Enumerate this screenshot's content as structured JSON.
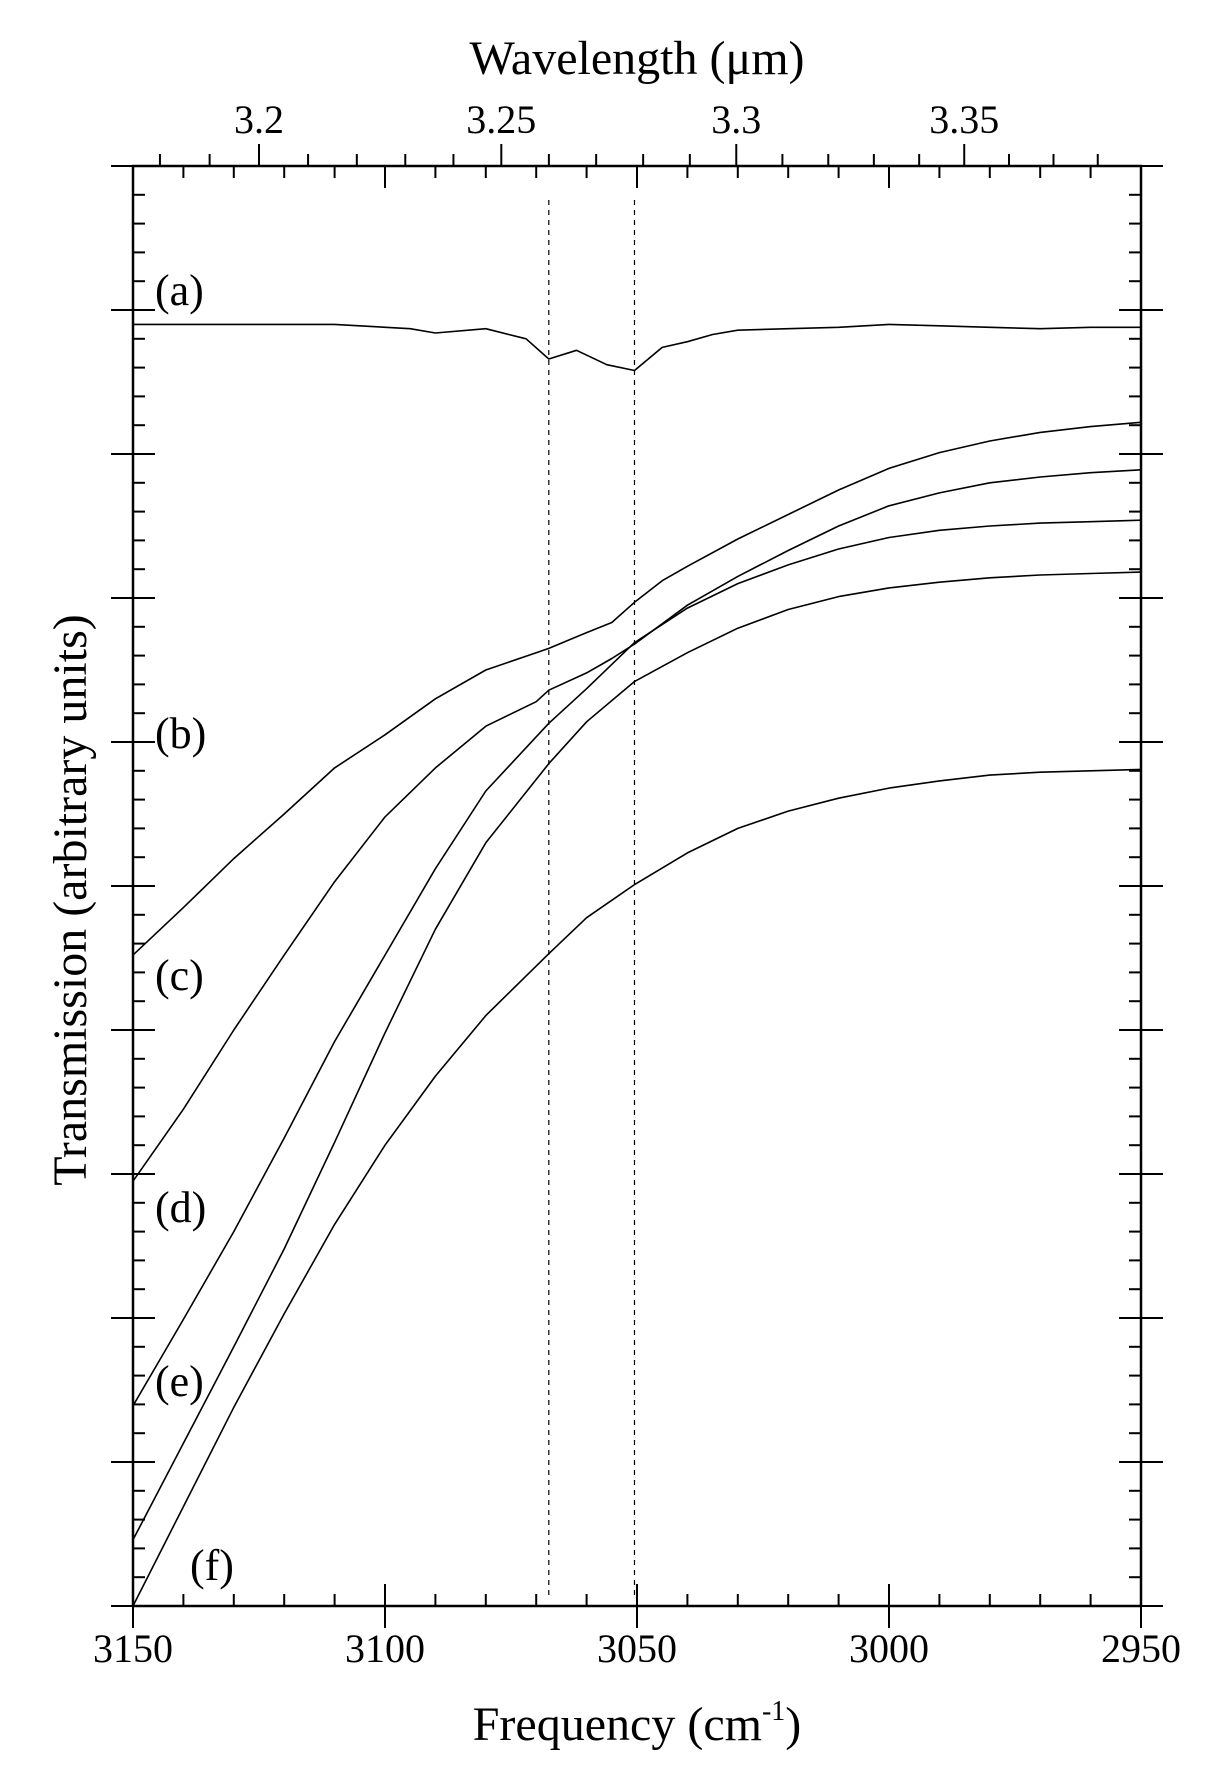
{
  "chart_data": {
    "type": "line",
    "top_axis_title": "Wavelength (μm)",
    "x_title_main": "Frequency (cm",
    "x_title_sup": "-1",
    "x_title_end": ")",
    "ylabel": "Transmission (arbitrary units)",
    "x_axis_reversed": true,
    "xlim": [
      3150,
      2950
    ],
    "ylim": [
      0,
      1
    ],
    "x_ticks": [
      "3150",
      "3100",
      "3050",
      "3000",
      "2950"
    ],
    "top_ticks": [
      {
        "label": "3.2",
        "wavelength_um": 3.2
      },
      {
        "label": "3.25",
        "wavelength_um": 3.25
      },
      {
        "label": "3.3",
        "wavelength_um": 3.3
      },
      {
        "label": "3.35",
        "wavelength_um": 3.35
      }
    ],
    "dashed_lines_cm1": [
      3067.5,
      3050.5
    ],
    "grid": false,
    "series": [
      {
        "name": "(a)",
        "x": [
          3150,
          3110,
          3095,
          3090,
          3080,
          3072,
          3067.5,
          3062,
          3056,
          3050.5,
          3045,
          3040,
          3035,
          3030,
          3020,
          3010,
          3000,
          2990,
          2980,
          2970,
          2960,
          2950
        ],
        "y": [
          0.89,
          0.89,
          0.887,
          0.884,
          0.887,
          0.88,
          0.866,
          0.872,
          0.862,
          0.858,
          0.874,
          0.878,
          0.883,
          0.886,
          0.887,
          0.888,
          0.89,
          0.889,
          0.888,
          0.887,
          0.888,
          0.888
        ]
      },
      {
        "name": "(b)",
        "x": [
          3150,
          3140,
          3130,
          3120,
          3110,
          3100,
          3090,
          3080,
          3070,
          3067.5,
          3060,
          3055,
          3050.5,
          3045,
          3040,
          3030,
          3020,
          3010,
          3000,
          2990,
          2980,
          2970,
          2960,
          2950
        ],
        "y": [
          0.452,
          0.485,
          0.519,
          0.55,
          0.582,
          0.605,
          0.63,
          0.65,
          0.662,
          0.665,
          0.676,
          0.683,
          0.697,
          0.712,
          0.722,
          0.741,
          0.758,
          0.775,
          0.79,
          0.801,
          0.809,
          0.815,
          0.819,
          0.822
        ]
      },
      {
        "name": "(c)",
        "x": [
          3150,
          3140,
          3130,
          3120,
          3110,
          3100,
          3090,
          3080,
          3070,
          3067.5,
          3060,
          3055,
          3050.5,
          3040,
          3030,
          3020,
          3010,
          3000,
          2990,
          2980,
          2970,
          2960,
          2950
        ],
        "y": [
          0.295,
          0.345,
          0.4,
          0.452,
          0.503,
          0.548,
          0.582,
          0.611,
          0.628,
          0.636,
          0.648,
          0.658,
          0.668,
          0.695,
          0.715,
          0.733,
          0.75,
          0.764,
          0.773,
          0.78,
          0.784,
          0.787,
          0.789
        ]
      },
      {
        "name": "(d)",
        "x": [
          3150,
          3140,
          3130,
          3120,
          3110,
          3100,
          3090,
          3080,
          3067.5,
          3060,
          3050.5,
          3040,
          3030,
          3020,
          3010,
          3000,
          2990,
          2980,
          2970,
          2960,
          2950
        ],
        "y": [
          0.139,
          0.199,
          0.26,
          0.325,
          0.392,
          0.452,
          0.512,
          0.566,
          0.613,
          0.637,
          0.669,
          0.693,
          0.71,
          0.723,
          0.734,
          0.742,
          0.747,
          0.75,
          0.752,
          0.753,
          0.754
        ]
      },
      {
        "name": "(e)",
        "x": [
          3150,
          3140,
          3130,
          3120,
          3110,
          3100,
          3090,
          3080,
          3067.5,
          3060,
          3050.5,
          3040,
          3030,
          3020,
          3010,
          3000,
          2990,
          2980,
          2970,
          2960,
          2950
        ],
        "y": [
          0.046,
          0.113,
          0.18,
          0.248,
          0.322,
          0.398,
          0.47,
          0.53,
          0.585,
          0.614,
          0.642,
          0.662,
          0.679,
          0.692,
          0.701,
          0.707,
          0.711,
          0.714,
          0.716,
          0.717,
          0.718
        ]
      },
      {
        "name": "(f)",
        "x": [
          3150,
          3140,
          3130,
          3120,
          3110,
          3100,
          3090,
          3080,
          3067.5,
          3060,
          3050.5,
          3040,
          3030,
          3020,
          3010,
          3000,
          2990,
          2980,
          2970,
          2960,
          2950
        ],
        "y": [
          0.0,
          0.069,
          0.138,
          0.203,
          0.265,
          0.32,
          0.368,
          0.41,
          0.453,
          0.478,
          0.501,
          0.523,
          0.54,
          0.552,
          0.561,
          0.568,
          0.573,
          0.577,
          0.579,
          0.58,
          0.581
        ]
      }
    ]
  }
}
